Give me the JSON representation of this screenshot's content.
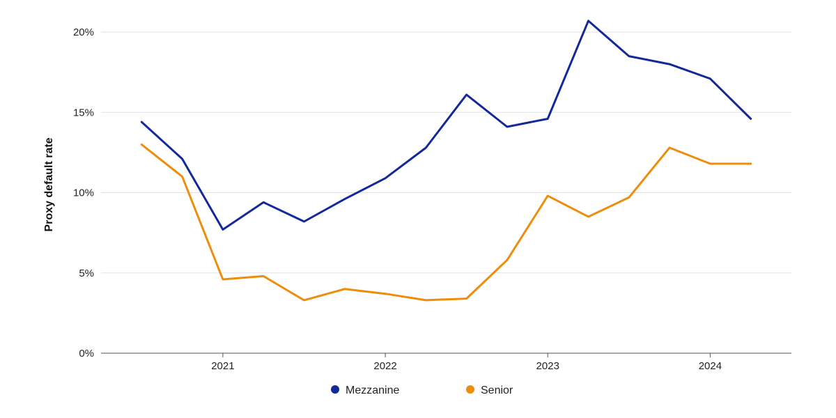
{
  "chart_data": {
    "type": "line",
    "title": "",
    "xlabel": "",
    "ylabel": "Proxy default rate",
    "x": [
      "2020-Q3",
      "2020-Q4",
      "2021-Q1",
      "2021-Q2",
      "2021-Q3",
      "2021-Q4",
      "2022-Q1",
      "2022-Q2",
      "2022-Q3",
      "2022-Q4",
      "2023-Q1",
      "2023-Q2",
      "2023-Q3",
      "2023-Q4",
      "2024-Q1",
      "2024-Q2"
    ],
    "xlim": [
      "2020-Q2",
      "2024-Q3"
    ],
    "x_ticks": [
      {
        "x": "2021-Q1",
        "label": "2021"
      },
      {
        "x": "2022-Q1",
        "label": "2022"
      },
      {
        "x": "2023-Q1",
        "label": "2023"
      },
      {
        "x": "2024-Q1",
        "label": "2024"
      }
    ],
    "ylim": [
      0,
      21
    ],
    "y_ticks": [
      {
        "value": 0,
        "label": "0%"
      },
      {
        "value": 5,
        "label": "5%"
      },
      {
        "value": 10,
        "label": "10%"
      },
      {
        "value": 15,
        "label": "15%"
      },
      {
        "value": 20,
        "label": "20%"
      }
    ],
    "grid": true,
    "legend": "bottom",
    "series": [
      {
        "name": "Mezzanine",
        "color": "#13299A",
        "values": [
          14.4,
          12.1,
          7.7,
          9.4,
          8.2,
          9.6,
          10.9,
          12.8,
          16.1,
          14.1,
          14.6,
          20.7,
          18.5,
          18.0,
          17.1,
          14.6
        ]
      },
      {
        "name": "Senior",
        "color": "#EE8C0C",
        "values": [
          13.0,
          11.0,
          4.6,
          4.8,
          3.3,
          4.0,
          3.7,
          3.3,
          3.4,
          5.8,
          9.8,
          8.5,
          9.7,
          12.8,
          11.8,
          11.8
        ]
      }
    ]
  }
}
